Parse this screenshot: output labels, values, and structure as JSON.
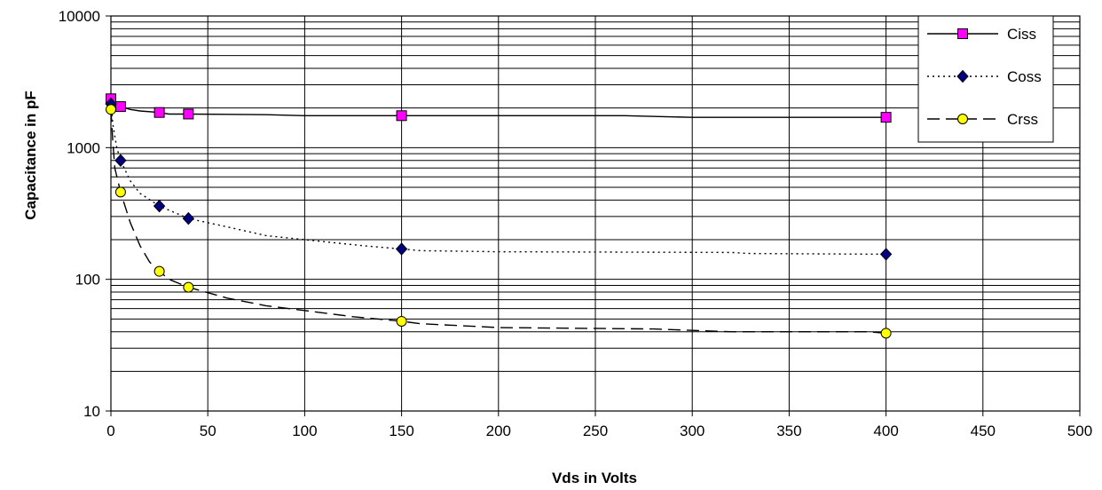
{
  "chart_data": {
    "type": "line",
    "xlabel": "Vds in Volts",
    "ylabel": "Capacitance in pF",
    "xlim": [
      0,
      500
    ],
    "x_ticks": [
      0,
      50,
      100,
      150,
      200,
      250,
      300,
      350,
      400,
      450,
      500
    ],
    "ylim": [
      10,
      10000
    ],
    "y_scale": "log",
    "y_ticks": [
      10,
      100,
      1000,
      10000
    ],
    "grid": true,
    "legend_position": "top-right",
    "series": [
      {
        "name": "Ciss",
        "color": "#ff00ff",
        "line_style": "solid",
        "marker": "square",
        "points": [
          [
            0,
            2350
          ],
          [
            5,
            2050
          ],
          [
            25,
            1850
          ],
          [
            40,
            1800
          ],
          [
            150,
            1750
          ],
          [
            400,
            1700
          ]
        ],
        "curve": [
          [
            0,
            2350
          ],
          [
            2,
            2150
          ],
          [
            5,
            2050
          ],
          [
            10,
            1950
          ],
          [
            15,
            1900
          ],
          [
            25,
            1850
          ],
          [
            30,
            1800
          ],
          [
            40,
            1800
          ],
          [
            80,
            1780
          ],
          [
            100,
            1750
          ],
          [
            150,
            1750
          ],
          [
            265,
            1750
          ],
          [
            300,
            1700
          ],
          [
            400,
            1700
          ]
        ]
      },
      {
        "name": "Coss",
        "color": "#000080",
        "line_style": "dotted",
        "marker": "diamond",
        "points": [
          [
            0,
            2150
          ],
          [
            5,
            800
          ],
          [
            25,
            360
          ],
          [
            40,
            290
          ],
          [
            150,
            170
          ],
          [
            400,
            155
          ]
        ],
        "curve": [
          [
            0,
            2150
          ],
          [
            1,
            1500
          ],
          [
            3,
            1000
          ],
          [
            5,
            800
          ],
          [
            10,
            560
          ],
          [
            15,
            450
          ],
          [
            25,
            360
          ],
          [
            40,
            290
          ],
          [
            60,
            250
          ],
          [
            80,
            215
          ],
          [
            100,
            200
          ],
          [
            130,
            180
          ],
          [
            150,
            170
          ],
          [
            160,
            165
          ],
          [
            200,
            162
          ],
          [
            320,
            160
          ],
          [
            330,
            157
          ],
          [
            400,
            155
          ]
        ]
      },
      {
        "name": "Crss",
        "color": "#ffff00",
        "line_style": "dashed",
        "marker": "circle",
        "points": [
          [
            0,
            1950
          ],
          [
            5,
            460
          ],
          [
            25,
            115
          ],
          [
            40,
            87
          ],
          [
            150,
            48
          ],
          [
            400,
            39
          ]
        ],
        "curve": [
          [
            0,
            1950
          ],
          [
            1,
            1100
          ],
          [
            2,
            700
          ],
          [
            5,
            460
          ],
          [
            10,
            270
          ],
          [
            15,
            180
          ],
          [
            20,
            135
          ],
          [
            25,
            115
          ],
          [
            30,
            100
          ],
          [
            40,
            87
          ],
          [
            60,
            72
          ],
          [
            80,
            63
          ],
          [
            100,
            58
          ],
          [
            125,
            52
          ],
          [
            150,
            48
          ],
          [
            160,
            46
          ],
          [
            200,
            43
          ],
          [
            280,
            42
          ],
          [
            320,
            40
          ],
          [
            390,
            40
          ],
          [
            400,
            39
          ]
        ]
      }
    ]
  }
}
